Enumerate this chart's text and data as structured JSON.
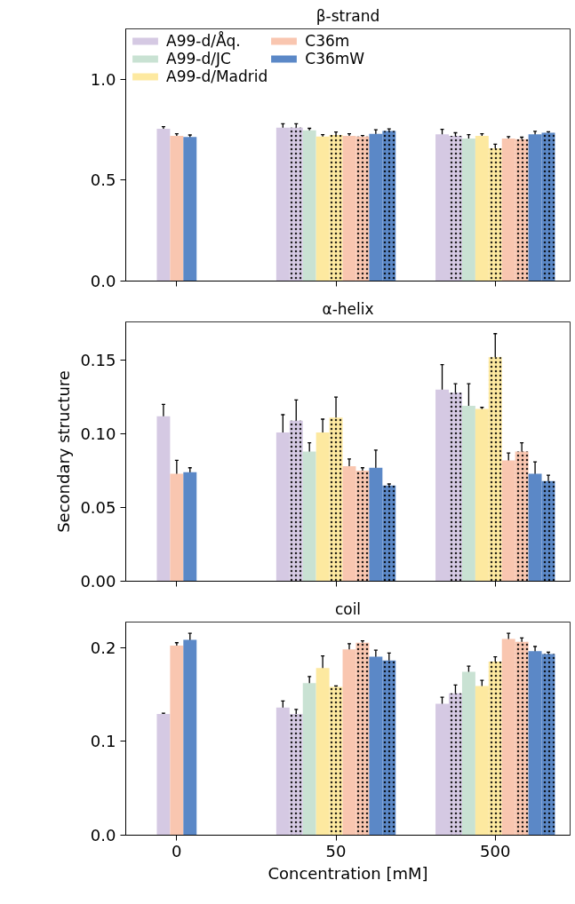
{
  "chart_data": [
    {
      "type": "bar",
      "title": "β-strand",
      "categories": [
        "0",
        "50",
        "500"
      ],
      "ylim": [
        0,
        1.25
      ],
      "yticks": [
        {
          "value": 0,
          "label": "0.0"
        },
        {
          "value": 0.5,
          "label": "0.5"
        },
        {
          "value": 1,
          "label": "1.0"
        }
      ],
      "tick_labels": "y",
      "legend": "top left",
      "series": [
        {
          "name": "A99-d/Åq.",
          "color": "#d5c9e3",
          "values": [
            0.755,
            0.76,
            0.727
          ],
          "errors": [
            0.01,
            0.02,
            0.025
          ]
        },
        {
          "color": "#d5c9e3",
          "line_style": "dotted",
          "values": [
            null,
            0.76,
            0.72
          ],
          "errors": [
            null,
            0.02,
            0.015
          ]
        },
        {
          "name": "A99-d/JC",
          "color": "#c9e2d3",
          "values": [
            null,
            0.747,
            0.706
          ],
          "errors": [
            null,
            0.01,
            0.02
          ]
        },
        {
          "name": "A99-d/Madrid",
          "color": "#fde9a0",
          "values": [
            null,
            0.716,
            0.72
          ],
          "errors": [
            null,
            0.01,
            0.01
          ]
        },
        {
          "color": "#fde9a0",
          "line_style": "dotted",
          "values": [
            null,
            0.724,
            0.658
          ],
          "errors": [
            null,
            0.015,
            0.02
          ]
        },
        {
          "name": "C36m",
          "color": "#f9c6b0",
          "values": [
            0.72,
            0.72,
            0.706
          ],
          "errors": [
            0.01,
            0.01,
            0.01
          ]
        },
        {
          "color": "#f9c6b0",
          "line_style": "dotted",
          "values": [
            null,
            0.716,
            0.703
          ],
          "errors": [
            null,
            0.005,
            0.01
          ]
        },
        {
          "name": "C36mW",
          "color": "#5b88c7",
          "values": [
            0.714,
            0.73,
            0.727
          ],
          "errors": [
            0.01,
            0.02,
            0.015
          ]
        },
        {
          "color": "#5b88c7",
          "line_style": "dotted",
          "values": [
            null,
            0.744,
            0.735
          ],
          "errors": [
            null,
            0.01,
            0.005
          ]
        }
      ]
    },
    {
      "type": "bar",
      "title": "α-helix",
      "ylabel": "Secondary structure",
      "categories": [
        "0",
        "50",
        "500"
      ],
      "ylim": [
        0,
        0.176
      ],
      "yticks": [
        {
          "value": 0,
          "label": "0.00"
        },
        {
          "value": 0.05,
          "label": "0.05"
        },
        {
          "value": 0.1,
          "label": "0.10"
        },
        {
          "value": 0.15,
          "label": "0.15"
        }
      ],
      "tick_labels": "y",
      "series": [
        {
          "color": "#d5c9e3",
          "values": [
            0.112,
            0.101,
            0.13
          ],
          "errors": [
            0.008,
            0.012,
            0.017
          ]
        },
        {
          "color": "#d5c9e3",
          "line_style": "dotted",
          "values": [
            null,
            0.109,
            0.128
          ],
          "errors": [
            null,
            0.014,
            0.006
          ]
        },
        {
          "color": "#c9e2d3",
          "values": [
            null,
            0.088,
            0.119
          ],
          "errors": [
            null,
            0.006,
            0.015
          ]
        },
        {
          "color": "#fde9a0",
          "values": [
            null,
            0.101,
            0.117
          ],
          "errors": [
            null,
            0.009,
            0.001
          ]
        },
        {
          "color": "#fde9a0",
          "line_style": "dotted",
          "values": [
            null,
            0.111,
            0.152
          ],
          "errors": [
            null,
            0.014,
            0.016
          ]
        },
        {
          "color": "#f9c6b0",
          "values": [
            0.073,
            0.078,
            0.082
          ],
          "errors": [
            0.009,
            0.005,
            0.005
          ]
        },
        {
          "color": "#f9c6b0",
          "line_style": "dotted",
          "values": [
            null,
            0.075,
            0.088
          ],
          "errors": [
            null,
            0.002,
            0.006
          ]
        },
        {
          "color": "#5b88c7",
          "values": [
            0.074,
            0.077,
            0.073
          ],
          "errors": [
            0.003,
            0.012,
            0.008
          ]
        },
        {
          "color": "#5b88c7",
          "line_style": "dotted",
          "values": [
            null,
            0.065,
            0.068
          ],
          "errors": [
            null,
            0.001,
            0.004
          ]
        }
      ]
    },
    {
      "type": "bar",
      "title": "coil",
      "xlabel": "Concentration [mM]",
      "categories": [
        "0",
        "50",
        "500"
      ],
      "ylim": [
        0,
        0.227
      ],
      "yticks": [
        {
          "value": 0,
          "label": "0.0"
        },
        {
          "value": 0.1,
          "label": "0.1"
        },
        {
          "value": 0.2,
          "label": "0.2"
        }
      ],
      "series": [
        {
          "color": "#d5c9e3",
          "values": [
            0.129,
            0.136,
            0.14
          ],
          "errors": [
            0.001,
            0.007,
            0.007
          ]
        },
        {
          "color": "#d5c9e3",
          "line_style": "dotted",
          "values": [
            null,
            0.129,
            0.151
          ],
          "errors": [
            null,
            0.005,
            0.009
          ]
        },
        {
          "color": "#c9e2d3",
          "values": [
            null,
            0.162,
            0.174
          ],
          "errors": [
            null,
            0.007,
            0.006
          ]
        },
        {
          "color": "#fde9a0",
          "values": [
            null,
            0.178,
            0.159
          ],
          "errors": [
            null,
            0.013,
            0.006
          ]
        },
        {
          "color": "#fde9a0",
          "line_style": "dotted",
          "values": [
            null,
            0.158,
            0.185
          ],
          "errors": [
            null,
            0.001,
            0.005
          ]
        },
        {
          "color": "#f9c6b0",
          "values": [
            0.202,
            0.198,
            0.209
          ],
          "errors": [
            0.003,
            0.006,
            0.006
          ]
        },
        {
          "color": "#f9c6b0",
          "line_style": "dotted",
          "values": [
            null,
            0.205,
            0.206
          ],
          "errors": [
            null,
            0.002,
            0.004
          ]
        },
        {
          "color": "#5b88c7",
          "values": [
            0.208,
            0.19,
            0.196
          ],
          "errors": [
            0.007,
            0.007,
            0.005
          ]
        },
        {
          "color": "#5b88c7",
          "line_style": "dotted",
          "values": [
            null,
            0.186,
            0.193
          ],
          "errors": [
            null,
            0.008,
            0.002
          ]
        }
      ]
    }
  ]
}
